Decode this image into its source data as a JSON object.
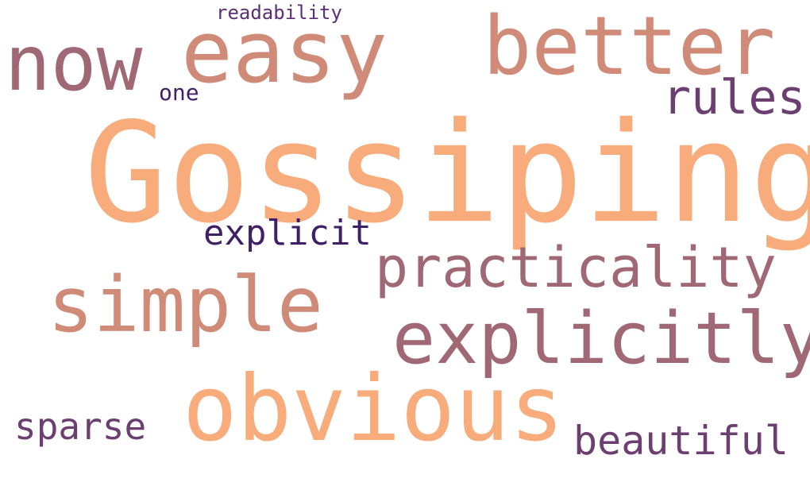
{
  "words": [
    {
      "text": "readability",
      "color": "#5a2f73"
    },
    {
      "text": "now",
      "color": "#a06874"
    },
    {
      "text": "easy",
      "color": "#cf8b78"
    },
    {
      "text": "better",
      "color": "#cf8b78"
    },
    {
      "text": "one",
      "color": "#3f1f66"
    },
    {
      "text": "rules",
      "color": "#6b3f6f"
    },
    {
      "text": "Gossiping",
      "color": "#f8ab7b"
    },
    {
      "text": "explicit",
      "color": "#3f1f66"
    },
    {
      "text": "practicality",
      "color": "#a06874"
    },
    {
      "text": "simple",
      "color": "#cf8b78"
    },
    {
      "text": "explicitly",
      "color": "#a06874"
    },
    {
      "text": "obvious",
      "color": "#f8ab7b"
    },
    {
      "text": "sparse",
      "color": "#6b3f6f"
    },
    {
      "text": "beautiful",
      "color": "#6b3f6f"
    }
  ]
}
